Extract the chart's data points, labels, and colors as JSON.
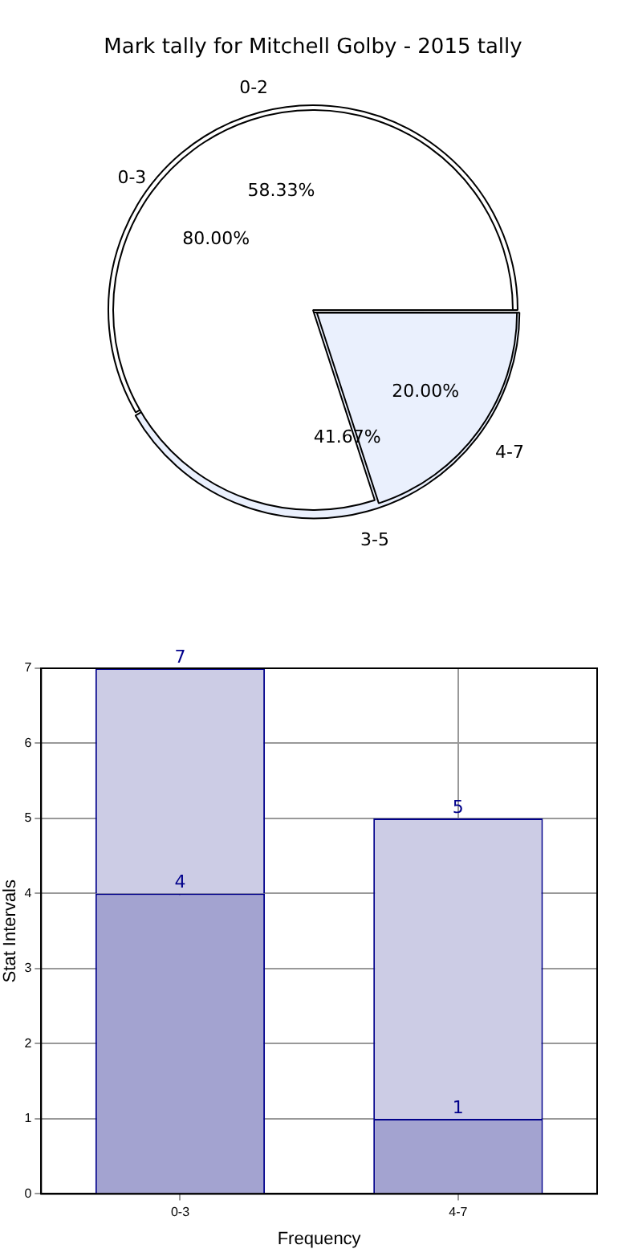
{
  "chart_data": [
    {
      "type": "pie",
      "title": "Mark tally for Mitchell Golby - 2015 tally",
      "categories": [
        "0-3",
        "4-7"
      ],
      "values": [
        80,
        20
      ],
      "colors": [
        "#ffffff",
        "#eaf0fd"
      ],
      "value_labels": [
        "80.00%",
        "20.00%"
      ]
    },
    {
      "type": "pie",
      "categories": [
        "0-2",
        "3-5"
      ],
      "values": [
        58.33,
        41.67
      ],
      "colors": [
        "#ffffff",
        "#eaf0fd"
      ],
      "value_labels": [
        "58.33%",
        "41.67%"
      ]
    },
    {
      "type": "bar",
      "categories": [
        "0-3",
        "4-7"
      ],
      "xlabel": "Frequency",
      "ylabel": "Stat Intervals",
      "ylim": [
        0,
        7
      ],
      "yticks": [
        0,
        1,
        2,
        3,
        4,
        5,
        6,
        7
      ],
      "grid": true,
      "stacked": true,
      "totals": [
        "7",
        "5"
      ],
      "series": [
        {
          "color": "#a3a3d0",
          "values": [
            4,
            1
          ],
          "value_labels": [
            "4",
            "1"
          ]
        },
        {
          "color": "#cccce5",
          "values": [
            3,
            4
          ],
          "value_labels": [
            null,
            null
          ]
        }
      ]
    }
  ]
}
